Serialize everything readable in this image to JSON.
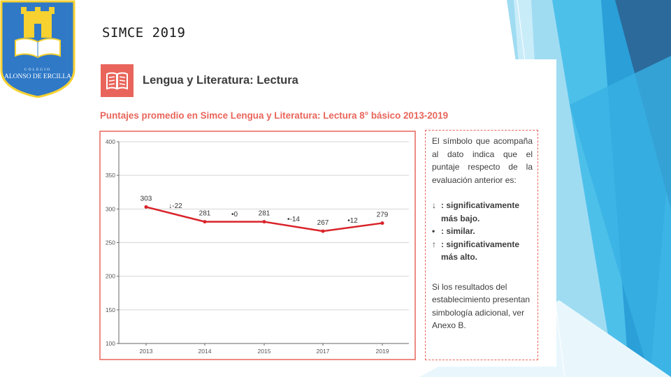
{
  "slide": {
    "title": "SIMCE 2019"
  },
  "crest": {
    "line1": "COLEGIO",
    "line2": "ALONSO DE ERCILLA"
  },
  "section": {
    "title": "Lengua y Literatura: Lectura"
  },
  "colors": {
    "accent": "#e9655b",
    "line": "#d9232a",
    "text": "#3c3c3c",
    "crest_blue": "#2f79c7",
    "crest_gold": "#f6d12f"
  },
  "chart_data": {
    "type": "line",
    "title": "Puntajes promedio en Simce Lengua y Literatura: Lectura 8° básico 2013-2019",
    "categories": [
      "2013",
      "2014",
      "2015",
      "2017",
      "2019"
    ],
    "values": [
      303,
      281,
      281,
      267,
      279
    ],
    "value_labels": [
      "303",
      "281",
      "281",
      "267",
      "279"
    ],
    "change_labels": [
      "↓-22",
      "•0",
      "•-14",
      "•12"
    ],
    "yticks": [
      "400",
      "350",
      "300",
      "250",
      "200",
      "150",
      "100"
    ],
    "ylim": [
      100,
      400
    ],
    "xlabel": "",
    "ylabel": "",
    "grid": true
  },
  "note": {
    "intro": "El símbolo que acompaña al dato indica que el puntaje respecto de la evaluación anterior es:",
    "legend": [
      {
        "symbol": "↓",
        "text": ": significativamente más bajo."
      },
      {
        "symbol": "•",
        "text": ": similar."
      },
      {
        "symbol": "↑",
        "text": ": significativamente más alto."
      }
    ],
    "extra": "Si los resultados del establecimiento presentan simbología adicional, ver Anexo B."
  }
}
